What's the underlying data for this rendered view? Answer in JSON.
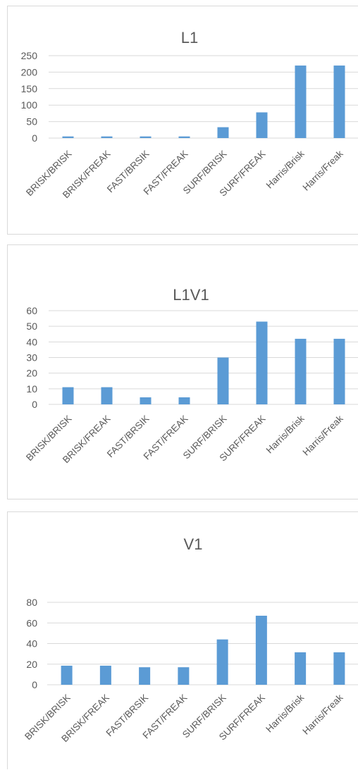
{
  "colors": {
    "bar": "#5b9bd5",
    "grid": "#d9d9d9",
    "text": "#595959"
  },
  "chart_data": [
    {
      "type": "bar",
      "title": "L1",
      "categories": [
        "BRISK/BRISK",
        "BRISK/FREAK",
        "FAST/BRSIK",
        "FAST/FREAK",
        "SURF/BRISK",
        "SURF/FREAK",
        "Harris/Brisk",
        "Harris/Freak"
      ],
      "values": [
        5,
        5,
        5,
        5,
        33,
        78,
        220,
        220
      ],
      "ylim": [
        0,
        250
      ],
      "yticks": [
        "0",
        "50",
        "100",
        "150",
        "200",
        "250"
      ],
      "grid": true,
      "legend": false
    },
    {
      "type": "bar",
      "title": "L1V1",
      "categories": [
        "BRISK/BRISK",
        "BRISK/FREAK",
        "FAST/BRSIK",
        "FAST/FREAK",
        "SURF/BRISK",
        "SURF/FREAK",
        "Harris/Brisk",
        "Harris/Freak"
      ],
      "values": [
        11,
        11,
        4.5,
        4.5,
        30,
        53,
        42,
        42
      ],
      "ylim": [
        0,
        60
      ],
      "yticks": [
        "0",
        "10",
        "20",
        "30",
        "40",
        "50",
        "60"
      ],
      "grid": true,
      "legend": false
    },
    {
      "type": "bar",
      "title": "V1",
      "categories": [
        "BRISK/BRISK",
        "BRISK/FREAK",
        "FAST/BRSIK",
        "FAST/FREAK",
        "SURF/BRISK",
        "SURF/FREAK",
        "Harris/Brisk",
        "Harris/Freak"
      ],
      "values": [
        18.5,
        18.5,
        17,
        17,
        44,
        67,
        31.5,
        31.5
      ],
      "ylim": [
        0,
        80
      ],
      "yticks": [
        "0",
        "20",
        "40",
        "60",
        "80"
      ],
      "grid": true,
      "legend": false
    }
  ]
}
